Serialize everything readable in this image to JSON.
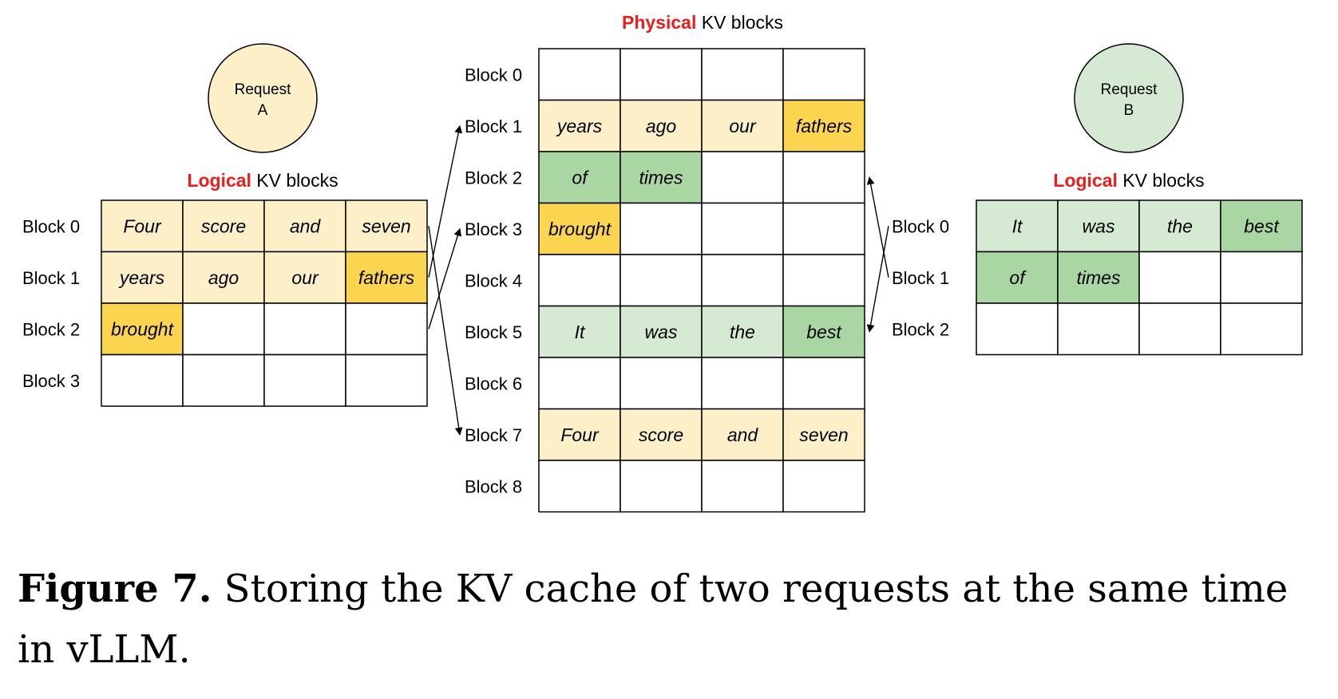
{
  "colors": {
    "light_yellow": "#fdf0c8",
    "dark_yellow": "#fbd54f",
    "light_green": "#d6ead3",
    "dark_green": "#a9d6a2",
    "red_title": "#e8201c"
  },
  "request_a": {
    "circle_line1": "Request",
    "circle_line2": "A",
    "title_red": "Logical",
    "title_rest": " KV blocks",
    "blocks": [
      {
        "label": "Block 0",
        "cells": [
          {
            "word": "Four",
            "shade": "light_yellow"
          },
          {
            "word": "score",
            "shade": "light_yellow"
          },
          {
            "word": "and",
            "shade": "light_yellow"
          },
          {
            "word": "seven",
            "shade": "light_yellow"
          }
        ]
      },
      {
        "label": "Block 1",
        "cells": [
          {
            "word": "years",
            "shade": "light_yellow"
          },
          {
            "word": "ago",
            "shade": "light_yellow"
          },
          {
            "word": "our",
            "shade": "light_yellow"
          },
          {
            "word": "fathers",
            "shade": "dark_yellow"
          }
        ]
      },
      {
        "label": "Block 2",
        "cells": [
          {
            "word": "brought",
            "shade": "dark_yellow"
          },
          {
            "word": "",
            "shade": "white"
          },
          {
            "word": "",
            "shade": "white"
          },
          {
            "word": "",
            "shade": "white"
          }
        ]
      },
      {
        "label": "Block 3",
        "cells": [
          {
            "word": "",
            "shade": "white"
          },
          {
            "word": "",
            "shade": "white"
          },
          {
            "word": "",
            "shade": "white"
          },
          {
            "word": "",
            "shade": "white"
          }
        ]
      }
    ]
  },
  "physical": {
    "title_red": "Physical",
    "title_rest": " KV blocks",
    "blocks": [
      {
        "label": "Block 0",
        "cells": [
          {
            "word": "",
            "shade": "white"
          },
          {
            "word": "",
            "shade": "white"
          },
          {
            "word": "",
            "shade": "white"
          },
          {
            "word": "",
            "shade": "white"
          }
        ]
      },
      {
        "label": "Block 1",
        "cells": [
          {
            "word": "years",
            "shade": "light_yellow"
          },
          {
            "word": "ago",
            "shade": "light_yellow"
          },
          {
            "word": "our",
            "shade": "light_yellow"
          },
          {
            "word": "fathers",
            "shade": "dark_yellow"
          }
        ]
      },
      {
        "label": "Block 2",
        "cells": [
          {
            "word": "of",
            "shade": "dark_green"
          },
          {
            "word": "times",
            "shade": "dark_green"
          },
          {
            "word": "",
            "shade": "white"
          },
          {
            "word": "",
            "shade": "white"
          }
        ]
      },
      {
        "label": "Block 3",
        "cells": [
          {
            "word": "brought",
            "shade": "dark_yellow"
          },
          {
            "word": "",
            "shade": "white"
          },
          {
            "word": "",
            "shade": "white"
          },
          {
            "word": "",
            "shade": "white"
          }
        ]
      },
      {
        "label": "Block 4",
        "cells": [
          {
            "word": "",
            "shade": "white"
          },
          {
            "word": "",
            "shade": "white"
          },
          {
            "word": "",
            "shade": "white"
          },
          {
            "word": "",
            "shade": "white"
          }
        ]
      },
      {
        "label": "Block 5",
        "cells": [
          {
            "word": "It",
            "shade": "light_green"
          },
          {
            "word": "was",
            "shade": "light_green"
          },
          {
            "word": "the",
            "shade": "light_green"
          },
          {
            "word": "best",
            "shade": "dark_green"
          }
        ]
      },
      {
        "label": "Block 6",
        "cells": [
          {
            "word": "",
            "shade": "white"
          },
          {
            "word": "",
            "shade": "white"
          },
          {
            "word": "",
            "shade": "white"
          },
          {
            "word": "",
            "shade": "white"
          }
        ]
      },
      {
        "label": "Block 7",
        "cells": [
          {
            "word": "Four",
            "shade": "light_yellow"
          },
          {
            "word": "score",
            "shade": "light_yellow"
          },
          {
            "word": "and",
            "shade": "light_yellow"
          },
          {
            "word": "seven",
            "shade": "light_yellow"
          }
        ]
      },
      {
        "label": "Block 8",
        "cells": [
          {
            "word": "",
            "shade": "white"
          },
          {
            "word": "",
            "shade": "white"
          },
          {
            "word": "",
            "shade": "white"
          },
          {
            "word": "",
            "shade": "white"
          }
        ]
      }
    ]
  },
  "request_b": {
    "circle_line1": "Request",
    "circle_line2": "B",
    "title_red": "Logical",
    "title_rest": " KV blocks",
    "blocks": [
      {
        "label": "Block 0",
        "cells": [
          {
            "word": "It",
            "shade": "light_green"
          },
          {
            "word": "was",
            "shade": "light_green"
          },
          {
            "word": "the",
            "shade": "light_green"
          },
          {
            "word": "best",
            "shade": "dark_green"
          }
        ]
      },
      {
        "label": "Block 1",
        "cells": [
          {
            "word": "of",
            "shade": "dark_green"
          },
          {
            "word": "times",
            "shade": "dark_green"
          },
          {
            "word": "",
            "shade": "white"
          },
          {
            "word": "",
            "shade": "white"
          }
        ]
      },
      {
        "label": "Block 2",
        "cells": [
          {
            "word": "",
            "shade": "white"
          },
          {
            "word": "",
            "shade": "white"
          },
          {
            "word": "",
            "shade": "white"
          },
          {
            "word": "",
            "shade": "white"
          }
        ]
      }
    ]
  },
  "mappings_a": [
    {
      "logical": 0,
      "physical": 7
    },
    {
      "logical": 1,
      "physical": 1
    },
    {
      "logical": 2,
      "physical": 3
    }
  ],
  "mappings_b": [
    {
      "logical": 0,
      "physical": 5
    },
    {
      "logical": 1,
      "physical": 2
    }
  ],
  "caption": {
    "label": "Figure 7.",
    "text": " Storing the KV cache of two requests at the same time in vLLM."
  }
}
